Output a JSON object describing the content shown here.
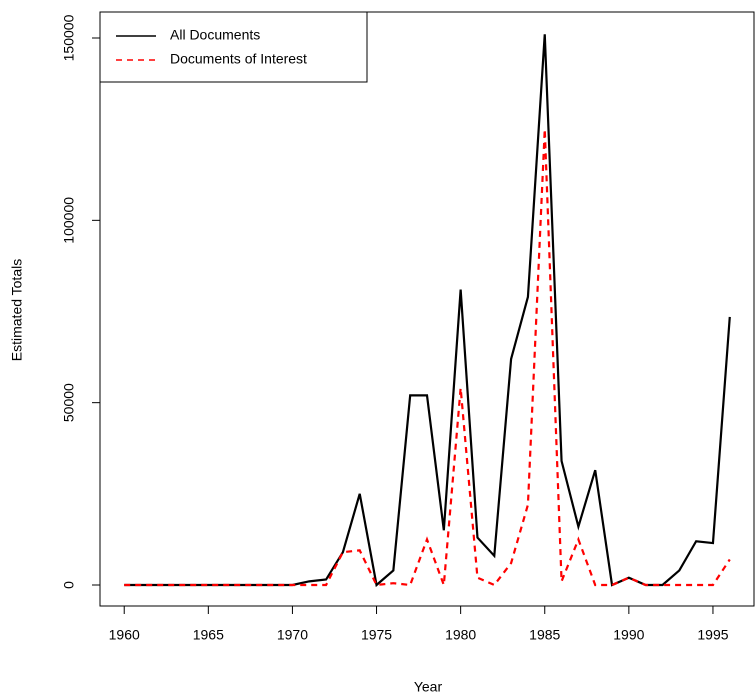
{
  "chart_data": {
    "type": "line",
    "xlabel": "Year",
    "ylabel": "Estimated Totals",
    "x": [
      1960,
      1961,
      1962,
      1963,
      1964,
      1965,
      1966,
      1967,
      1968,
      1969,
      1970,
      1971,
      1972,
      1973,
      1974,
      1975,
      1976,
      1977,
      1978,
      1979,
      1980,
      1981,
      1982,
      1983,
      1984,
      1985,
      1986,
      1987,
      1988,
      1989,
      1990,
      1991,
      1992,
      1993,
      1994,
      1995,
      1996
    ],
    "series": [
      {
        "name": "All Documents",
        "color": "#000000",
        "dash": "solid",
        "values": [
          0,
          0,
          0,
          0,
          0,
          0,
          0,
          0,
          0,
          0,
          0,
          1000,
          1500,
          9000,
          25000,
          0,
          4000,
          52000,
          52000,
          15000,
          81000,
          13000,
          8000,
          62000,
          79000,
          151000,
          34000,
          16000,
          31500,
          0,
          2000,
          0,
          0,
          4000,
          12000,
          11500,
          73500
        ]
      },
      {
        "name": "Documents of Interest",
        "color": "#ff0000",
        "dash": "dashed",
        "values": [
          0,
          0,
          0,
          0,
          0,
          0,
          0,
          0,
          0,
          0,
          0,
          0,
          0,
          9000,
          9500,
          0,
          500,
          0,
          12500,
          0,
          54000,
          2000,
          0,
          6000,
          22000,
          125000,
          1000,
          12500,
          0,
          0,
          2000,
          0,
          0,
          0,
          0,
          0,
          7000
        ]
      }
    ],
    "xlim": [
      1958.56,
      1997.44
    ],
    "xticks": [
      1960,
      1965,
      1970,
      1975,
      1980,
      1985,
      1990,
      1995
    ],
    "ylim": [
      -5760,
      157130
    ],
    "yticks": [
      0,
      50000,
      100000,
      150000
    ],
    "legend": "topleft"
  }
}
